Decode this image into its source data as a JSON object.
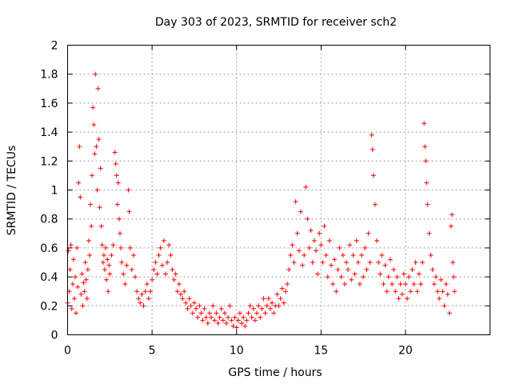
{
  "chart_data": {
    "type": "scatter",
    "title": "Day 303 of 2023, SRMTID for receiver sch2",
    "xlabel": "GPS time / hours",
    "ylabel": "SRMTID / TECUs",
    "xlim": [
      0,
      25
    ],
    "ylim": [
      0,
      2
    ],
    "xticks": [
      0,
      5,
      10,
      15,
      20
    ],
    "xtick_labels": [
      "0",
      "5",
      "10",
      "15",
      "20"
    ],
    "yticks": [
      0,
      0.2,
      0.4,
      0.6,
      0.8,
      1,
      1.2,
      1.4,
      1.6,
      1.8,
      2
    ],
    "ytick_labels": [
      "0",
      "0.2",
      "0.4",
      "0.6",
      "0.8",
      "1",
      "1.2",
      "1.4",
      "1.6",
      "1.8",
      "2"
    ],
    "grid": true,
    "marker": "plus",
    "color": "#ff0000",
    "series": [
      {
        "name": "sch2",
        "points": [
          [
            0.0,
            0.22
          ],
          [
            0.05,
            0.58
          ],
          [
            0.1,
            0.3
          ],
          [
            0.15,
            0.45
          ],
          [
            0.2,
            0.62
          ],
          [
            0.25,
            0.18
          ],
          [
            0.3,
            0.35
          ],
          [
            0.35,
            0.52
          ],
          [
            0.4,
            0.25
          ],
          [
            0.45,
            0.4
          ],
          [
            0.5,
            0.15
          ],
          [
            0.55,
            0.6
          ],
          [
            0.6,
            0.33
          ],
          [
            0.65,
            1.05
          ],
          [
            0.7,
            1.3
          ],
          [
            0.75,
            0.95
          ],
          [
            0.8,
            0.28
          ],
          [
            0.85,
            0.42
          ],
          [
            0.9,
            0.2
          ],
          [
            0.95,
            0.36
          ],
          [
            1.0,
            0.3
          ],
          [
            1.05,
            0.5
          ],
          [
            1.1,
            0.38
          ],
          [
            1.15,
            0.25
          ],
          [
            1.2,
            0.45
          ],
          [
            1.25,
            0.65
          ],
          [
            1.3,
            0.55
          ],
          [
            1.35,
            0.9
          ],
          [
            1.4,
            0.75
          ],
          [
            1.45,
            1.1
          ],
          [
            1.5,
            1.57
          ],
          [
            1.55,
            1.45
          ],
          [
            1.6,
            1.25
          ],
          [
            1.65,
            1.8
          ],
          [
            1.7,
            1.3
          ],
          [
            1.75,
            1.0
          ],
          [
            1.8,
            1.7
          ],
          [
            1.85,
            1.35
          ],
          [
            1.9,
            0.88
          ],
          [
            1.95,
            1.15
          ],
          [
            2.0,
            0.75
          ],
          [
            2.05,
            0.62
          ],
          [
            2.1,
            0.5
          ],
          [
            2.15,
            0.55
          ],
          [
            2.2,
            0.45
          ],
          [
            2.25,
            0.6
          ],
          [
            2.3,
            0.38
          ],
          [
            2.35,
            0.52
          ],
          [
            2.4,
            0.3
          ],
          [
            2.45,
            0.48
          ],
          [
            2.5,
            0.42
          ],
          [
            2.6,
            0.55
          ],
          [
            2.7,
            0.62
          ],
          [
            2.8,
            1.26
          ],
          [
            2.85,
            1.18
          ],
          [
            2.9,
            1.1
          ],
          [
            2.95,
            0.9
          ],
          [
            3.0,
            1.05
          ],
          [
            3.05,
            0.8
          ],
          [
            3.1,
            0.7
          ],
          [
            3.15,
            0.6
          ],
          [
            3.2,
            0.5
          ],
          [
            3.3,
            0.42
          ],
          [
            3.4,
            0.35
          ],
          [
            3.5,
            0.48
          ],
          [
            3.6,
            1.0
          ],
          [
            3.65,
            0.85
          ],
          [
            3.7,
            0.6
          ],
          [
            3.8,
            0.45
          ],
          [
            3.9,
            0.55
          ],
          [
            4.0,
            0.4
          ],
          [
            4.1,
            0.3
          ],
          [
            4.2,
            0.25
          ],
          [
            4.3,
            0.22
          ],
          [
            4.4,
            0.28
          ],
          [
            4.5,
            0.2
          ],
          [
            4.6,
            0.3
          ],
          [
            4.7,
            0.35
          ],
          [
            4.8,
            0.25
          ],
          [
            4.9,
            0.3
          ],
          [
            5.0,
            0.38
          ],
          [
            5.1,
            0.45
          ],
          [
            5.2,
            0.5
          ],
          [
            5.3,
            0.42
          ],
          [
            5.4,
            0.55
          ],
          [
            5.5,
            0.6
          ],
          [
            5.6,
            0.48
          ],
          [
            5.7,
            0.65
          ],
          [
            5.8,
            0.42
          ],
          [
            5.9,
            0.5
          ],
          [
            6.0,
            0.62
          ],
          [
            6.1,
            0.55
          ],
          [
            6.2,
            0.45
          ],
          [
            6.3,
            0.38
          ],
          [
            6.4,
            0.42
          ],
          [
            6.5,
            0.3
          ],
          [
            6.6,
            0.35
          ],
          [
            6.7,
            0.28
          ],
          [
            6.8,
            0.25
          ],
          [
            6.9,
            0.3
          ],
          [
            7.0,
            0.22
          ],
          [
            7.1,
            0.18
          ],
          [
            7.2,
            0.25
          ],
          [
            7.3,
            0.2
          ],
          [
            7.4,
            0.15
          ],
          [
            7.5,
            0.22
          ],
          [
            7.6,
            0.18
          ],
          [
            7.7,
            0.12
          ],
          [
            7.8,
            0.2
          ],
          [
            7.9,
            0.15
          ],
          [
            8.0,
            0.1
          ],
          [
            8.1,
            0.18
          ],
          [
            8.2,
            0.12
          ],
          [
            8.3,
            0.08
          ],
          [
            8.4,
            0.15
          ],
          [
            8.5,
            0.12
          ],
          [
            8.6,
            0.2
          ],
          [
            8.7,
            0.1
          ],
          [
            8.8,
            0.15
          ],
          [
            8.9,
            0.08
          ],
          [
            9.0,
            0.12
          ],
          [
            9.1,
            0.18
          ],
          [
            9.2,
            0.1
          ],
          [
            9.3,
            0.15
          ],
          [
            9.4,
            0.08
          ],
          [
            9.5,
            0.12
          ],
          [
            9.6,
            0.2
          ],
          [
            9.7,
            0.1
          ],
          [
            9.8,
            0.06
          ],
          [
            9.9,
            0.12
          ],
          [
            10.0,
            0.05
          ],
          [
            10.1,
            0.1
          ],
          [
            10.2,
            0.15
          ],
          [
            10.3,
            0.08
          ],
          [
            10.4,
            0.12
          ],
          [
            10.5,
            0.06
          ],
          [
            10.6,
            0.1
          ],
          [
            10.7,
            0.15
          ],
          [
            10.8,
            0.2
          ],
          [
            10.9,
            0.12
          ],
          [
            11.0,
            0.18
          ],
          [
            11.1,
            0.1
          ],
          [
            11.2,
            0.15
          ],
          [
            11.3,
            0.2
          ],
          [
            11.4,
            0.12
          ],
          [
            11.5,
            0.18
          ],
          [
            11.6,
            0.25
          ],
          [
            11.7,
            0.15
          ],
          [
            11.8,
            0.2
          ],
          [
            11.9,
            0.25
          ],
          [
            12.0,
            0.18
          ],
          [
            12.1,
            0.22
          ],
          [
            12.2,
            0.15
          ],
          [
            12.3,
            0.2
          ],
          [
            12.4,
            0.28
          ],
          [
            12.5,
            0.2
          ],
          [
            12.6,
            0.25
          ],
          [
            12.7,
            0.32
          ],
          [
            12.8,
            0.22
          ],
          [
            12.9,
            0.3
          ],
          [
            13.0,
            0.35
          ],
          [
            13.1,
            0.45
          ],
          [
            13.2,
            0.55
          ],
          [
            13.3,
            0.62
          ],
          [
            13.4,
            0.5
          ],
          [
            13.5,
            0.92
          ],
          [
            13.6,
            0.7
          ],
          [
            13.7,
            0.58
          ],
          [
            13.8,
            0.85
          ],
          [
            13.9,
            0.48
          ],
          [
            14.0,
            0.55
          ],
          [
            14.1,
            1.02
          ],
          [
            14.2,
            0.8
          ],
          [
            14.3,
            0.6
          ],
          [
            14.4,
            0.72
          ],
          [
            14.5,
            0.5
          ],
          [
            14.6,
            0.65
          ],
          [
            14.7,
            0.58
          ],
          [
            14.8,
            0.42
          ],
          [
            14.9,
            0.7
          ],
          [
            15.0,
            0.62
          ],
          [
            15.1,
            0.5
          ],
          [
            15.2,
            0.75
          ],
          [
            15.3,
            0.55
          ],
          [
            15.4,
            0.4
          ],
          [
            15.5,
            0.65
          ],
          [
            15.6,
            0.48
          ],
          [
            15.7,
            0.35
          ],
          [
            15.8,
            0.52
          ],
          [
            15.9,
            0.3
          ],
          [
            16.0,
            0.45
          ],
          [
            16.1,
            0.6
          ],
          [
            16.2,
            0.4
          ],
          [
            16.3,
            0.55
          ],
          [
            16.4,
            0.35
          ],
          [
            16.5,
            0.5
          ],
          [
            16.6,
            0.45
          ],
          [
            16.7,
            0.62
          ],
          [
            16.8,
            0.38
          ],
          [
            16.9,
            0.55
          ],
          [
            17.0,
            0.42
          ],
          [
            17.1,
            0.65
          ],
          [
            17.2,
            0.5
          ],
          [
            17.3,
            0.35
          ],
          [
            17.4,
            0.55
          ],
          [
            17.5,
            0.4
          ],
          [
            17.6,
            0.6
          ],
          [
            17.7,
            0.45
          ],
          [
            17.8,
            0.7
          ],
          [
            17.9,
            0.5
          ],
          [
            18.0,
            1.38
          ],
          [
            18.05,
            1.28
          ],
          [
            18.1,
            1.1
          ],
          [
            18.2,
            0.9
          ],
          [
            18.3,
            0.65
          ],
          [
            18.4,
            0.5
          ],
          [
            18.5,
            0.42
          ],
          [
            18.6,
            0.55
          ],
          [
            18.7,
            0.35
          ],
          [
            18.8,
            0.48
          ],
          [
            18.9,
            0.3
          ],
          [
            19.0,
            0.4
          ],
          [
            19.1,
            0.52
          ],
          [
            19.2,
            0.35
          ],
          [
            19.3,
            0.45
          ],
          [
            19.4,
            0.3
          ],
          [
            19.5,
            0.4
          ],
          [
            19.6,
            0.25
          ],
          [
            19.7,
            0.35
          ],
          [
            19.8,
            0.28
          ],
          [
            19.9,
            0.42
          ],
          [
            20.0,
            0.35
          ],
          [
            20.1,
            0.25
          ],
          [
            20.2,
            0.4
          ],
          [
            20.3,
            0.3
          ],
          [
            20.4,
            0.45
          ],
          [
            20.5,
            0.35
          ],
          [
            20.6,
            0.5
          ],
          [
            20.7,
            0.3
          ],
          [
            20.8,
            0.42
          ],
          [
            20.9,
            0.35
          ],
          [
            21.0,
            0.5
          ],
          [
            21.1,
            1.46
          ],
          [
            21.15,
            1.3
          ],
          [
            21.2,
            1.2
          ],
          [
            21.25,
            1.05
          ],
          [
            21.3,
            0.9
          ],
          [
            21.4,
            0.7
          ],
          [
            21.5,
            0.55
          ],
          [
            21.6,
            0.45
          ],
          [
            21.7,
            0.35
          ],
          [
            21.8,
            0.4
          ],
          [
            21.9,
            0.3
          ],
          [
            22.0,
            0.25
          ],
          [
            22.1,
            0.38
          ],
          [
            22.2,
            0.3
          ],
          [
            22.3,
            0.2
          ],
          [
            22.4,
            0.35
          ],
          [
            22.5,
            0.28
          ],
          [
            22.6,
            0.15
          ],
          [
            22.7,
            0.75
          ],
          [
            22.75,
            0.83
          ],
          [
            22.8,
            0.5
          ],
          [
            22.85,
            0.4
          ],
          [
            22.9,
            0.3
          ]
        ]
      }
    ]
  }
}
